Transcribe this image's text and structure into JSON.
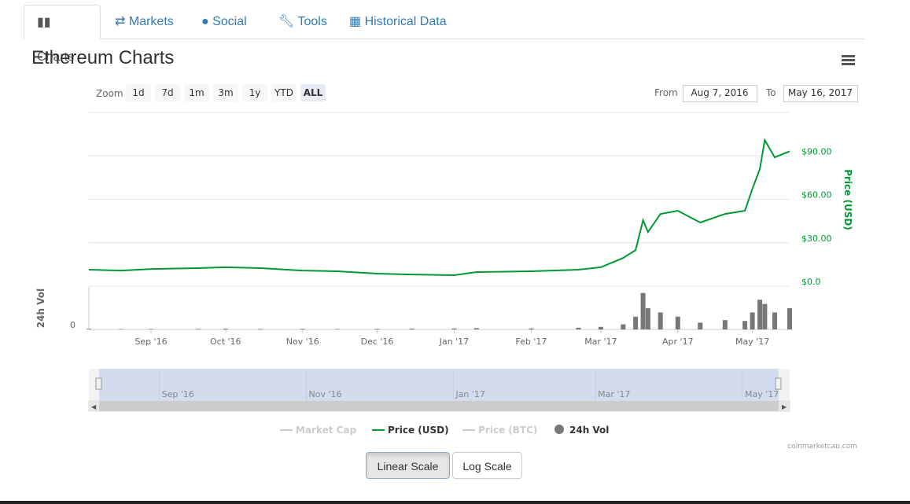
{
  "tabs": [
    "Charts",
    "Markets",
    "Social",
    "Tools",
    "Historical Data"
  ],
  "title": "Ethereum Charts",
  "zoom": {
    "label": "Zoom",
    "buttons": [
      "1d",
      "7d",
      "1m",
      "3m",
      "1y",
      "YTD",
      "ALL"
    ],
    "active": "ALL"
  },
  "range": {
    "from_label": "From",
    "from": "Aug 7, 2016",
    "to_label": "To",
    "to": "May 16, 2017"
  },
  "chart_data": {
    "type": "line",
    "x": [
      "2016-08-07",
      "2016-08-20",
      "2016-09-01",
      "2016-09-20",
      "2016-10-01",
      "2016-10-15",
      "2016-11-01",
      "2016-11-15",
      "2016-12-01",
      "2016-12-15",
      "2017-01-01",
      "2017-01-10",
      "2017-02-01",
      "2017-02-20",
      "2017-03-01",
      "2017-03-10",
      "2017-03-15",
      "2017-03-18",
      "2017-03-20",
      "2017-03-25",
      "2017-04-01",
      "2017-04-10",
      "2017-04-20",
      "2017-04-28",
      "2017-05-01",
      "2017-05-04",
      "2017-05-06",
      "2017-05-10",
      "2017-05-16"
    ],
    "xlim": [
      "2016-08-07",
      "2017-05-16"
    ],
    "xticks": [
      {
        "value": "2016-09-01",
        "label": "Sep '16"
      },
      {
        "value": "2016-10-01",
        "label": "Oct '16"
      },
      {
        "value": "2016-11-01",
        "label": "Nov '16"
      },
      {
        "value": "2016-12-01",
        "label": "Dec '16"
      },
      {
        "value": "2017-01-01",
        "label": "Jan '17"
      },
      {
        "value": "2017-02-01",
        "label": "Feb '17"
      },
      {
        "value": "2017-03-01",
        "label": "Mar '17"
      },
      {
        "value": "2017-04-01",
        "label": "Apr '17"
      },
      {
        "value": "2017-05-01",
        "label": "May '17"
      }
    ],
    "series": [
      {
        "name": "Price (USD)",
        "color": "#009933",
        "type": "line",
        "axis": "y2",
        "values": [
          11.4,
          10.8,
          11.9,
          12.5,
          13.1,
          12.5,
          10.8,
          10.3,
          8.7,
          8.1,
          7.6,
          9.8,
          10.3,
          11.4,
          13.1,
          19.5,
          24.9,
          45.6,
          37.4,
          49.9,
          52.1,
          44,
          49.9,
          52.1,
          67.2,
          80.9,
          100.9,
          89,
          93.2
        ]
      },
      {
        "name": "24h Vol",
        "color": "#777777",
        "type": "bar",
        "axis": "y",
        "values": [
          8000000,
          5000000,
          6000000,
          7000000,
          9000000,
          6000000,
          8000000,
          5000000,
          7000000,
          10000000,
          12000000,
          15000000,
          12000000,
          20000000,
          30000000,
          60000000,
          150000000,
          430000000,
          250000000,
          200000000,
          150000000,
          80000000,
          110000000,
          100000000,
          200000000,
          350000000,
          300000000,
          200000000,
          250000000
        ]
      }
    ],
    "hidden_series": [
      {
        "name": "Market Cap",
        "color": "#cccccc"
      },
      {
        "name": "Price (BTC)",
        "color": "#cccccc"
      }
    ],
    "y2_title": "Price (USD)",
    "y2lim": [
      0,
      120
    ],
    "y2ticks": [
      {
        "value": 0,
        "label": "$0.0"
      },
      {
        "value": 30,
        "label": "$30.00"
      },
      {
        "value": 60,
        "label": "$60.00"
      },
      {
        "value": 90,
        "label": "$90.00"
      }
    ],
    "y_title": "24h Vol",
    "ylim": [
      0,
      500000000
    ],
    "yticks": [
      0
    ],
    "grid": true,
    "navigator_ticks": [
      {
        "value": "2016-09-01",
        "label": "Sep '16"
      },
      {
        "value": "2016-11-01",
        "label": "Nov '16"
      },
      {
        "value": "2017-01-01",
        "label": "Jan '17"
      },
      {
        "value": "2017-03-01",
        "label": "Mar '17"
      },
      {
        "value": "2017-05-01",
        "label": "May '17"
      }
    ],
    "credit": "coinmarketcap.com"
  },
  "scale_buttons": [
    "Linear Scale",
    "Log Scale"
  ]
}
